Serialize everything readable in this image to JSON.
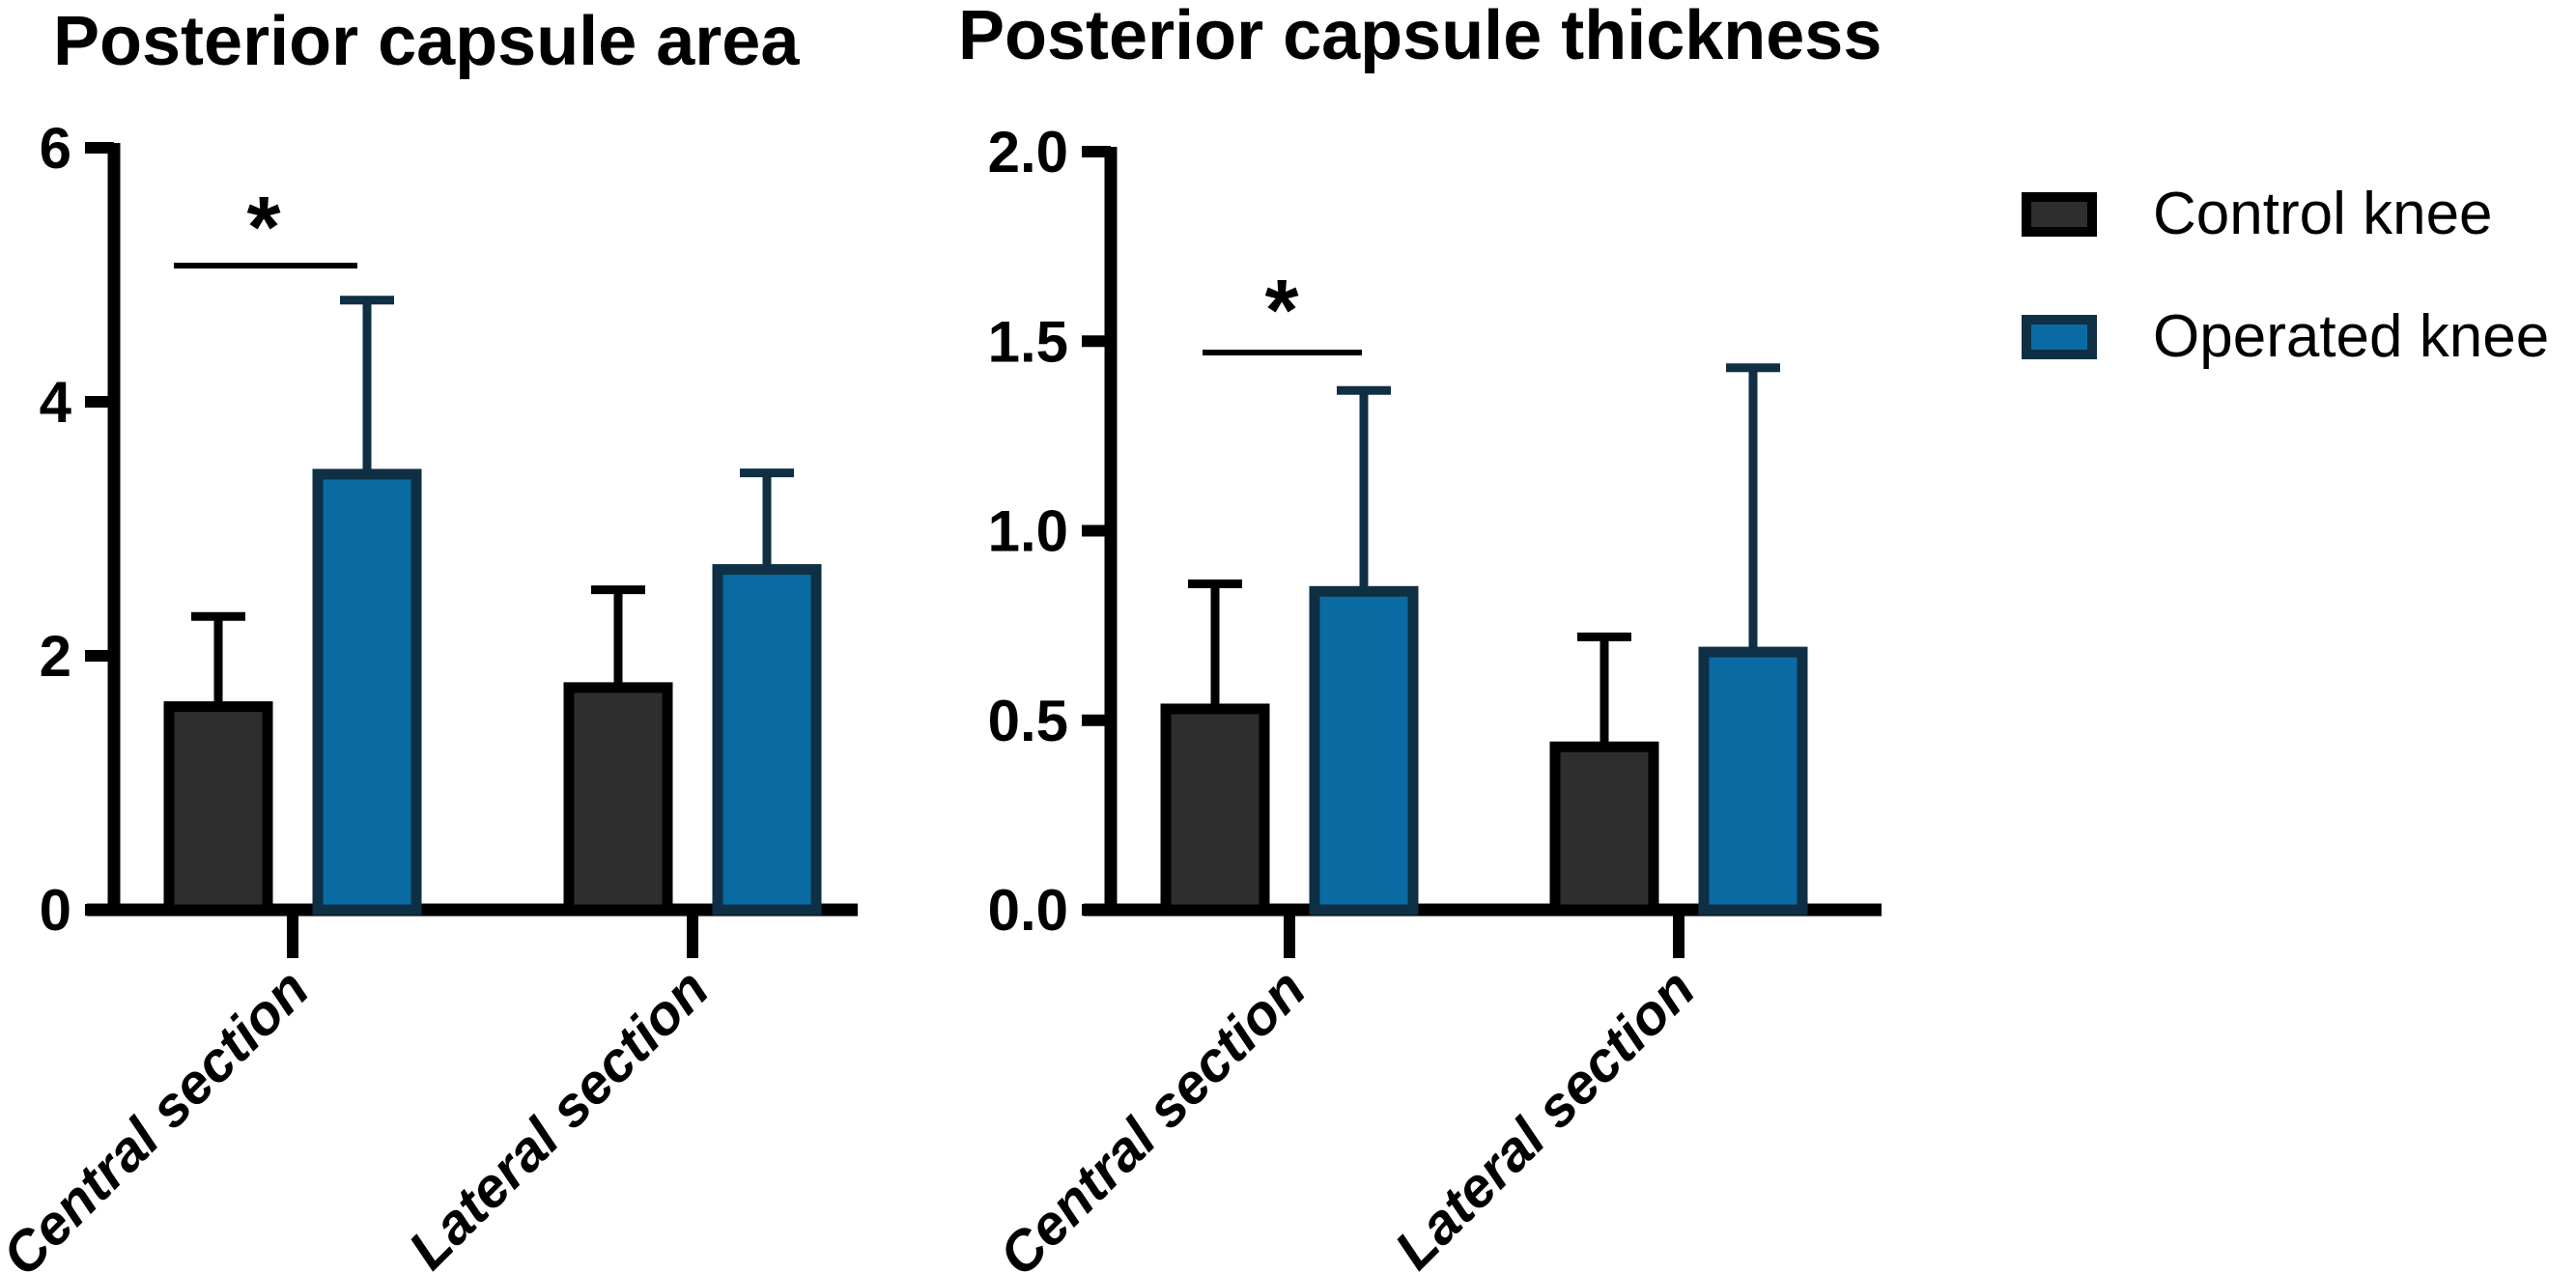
{
  "figure": {
    "background_color": "#ffffff",
    "text_color": "#000000"
  },
  "legend": {
    "items": [
      {
        "label": "Control knee",
        "swatch_fill": "#2e2e2e",
        "swatch_border": "#000000"
      },
      {
        "label": "Operated knee",
        "swatch_fill": "#0a6ba3",
        "swatch_border": "#0e2f44"
      }
    ]
  },
  "chart_data": [
    {
      "type": "bar",
      "title": "Posterior capsule area",
      "categories": [
        "Central section",
        "Lateral section"
      ],
      "series": [
        {
          "name": "Control knee",
          "values": [
            1.6,
            1.75
          ],
          "error_top": [
            2.31,
            2.52
          ],
          "fill": "#2e2e2e",
          "border": "#000000"
        },
        {
          "name": "Operated knee",
          "values": [
            3.43,
            2.68
          ],
          "error_top": [
            4.8,
            3.44
          ],
          "fill": "#0a6ba3",
          "border": "#0e2f44"
        }
      ],
      "ylim": [
        0,
        6
      ],
      "yticks": [
        0,
        2,
        4,
        6
      ],
      "ytick_labels": [
        "0",
        "2",
        "4",
        "6"
      ],
      "grid": false,
      "legend_position": "outside-right",
      "significance": [
        {
          "pair": "Central section: Control knee vs Operated knee",
          "label": "*",
          "line_y": 5.08
        }
      ]
    },
    {
      "type": "bar",
      "title": "Posterior capsule thickness",
      "categories": [
        "Central section",
        "Lateral section"
      ],
      "series": [
        {
          "name": "Control knee",
          "values": [
            0.53,
            0.43
          ],
          "error_top": [
            0.86,
            0.72
          ],
          "fill": "#2e2e2e",
          "border": "#000000"
        },
        {
          "name": "Operated knee",
          "values": [
            0.84,
            0.68
          ],
          "error_top": [
            1.37,
            1.43
          ],
          "fill": "#0a6ba3",
          "border": "#0e2f44"
        }
      ],
      "ylim": [
        0,
        2
      ],
      "yticks": [
        0,
        0.5,
        1,
        1.5,
        2
      ],
      "ytick_labels": [
        "0.0",
        "0.5",
        "1.0",
        "1.5",
        "2.0"
      ],
      "grid": false,
      "legend_position": "outside-right",
      "significance": [
        {
          "pair": "Central section: Control knee vs Operated knee",
          "label": "*",
          "line_y": 1.47
        }
      ]
    }
  ]
}
